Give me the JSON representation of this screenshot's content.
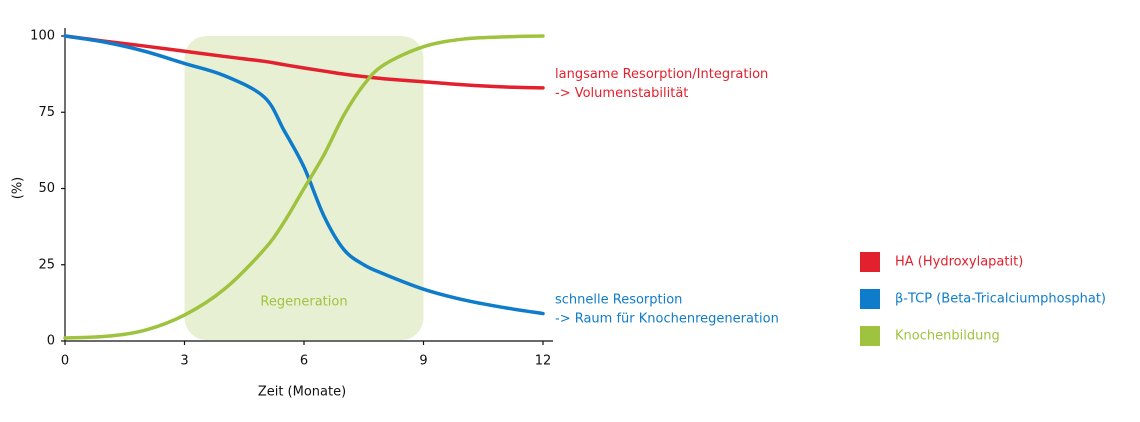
{
  "chart_data": {
    "type": "line",
    "x_label": "Zeit (Monate)",
    "y_label": "(%)",
    "x": [
      0,
      1,
      2,
      3,
      4,
      5,
      5.5,
      6,
      6.5,
      7,
      7.5,
      8,
      9,
      10,
      11,
      12
    ],
    "xlim": [
      0,
      12
    ],
    "xticks": [
      0,
      3,
      6,
      9,
      12
    ],
    "ylim": [
      0,
      100
    ],
    "yticks": [
      0,
      25,
      50,
      75,
      100
    ],
    "highlight": {
      "x": [
        3,
        9
      ],
      "label": "Regeneration",
      "color": "#e8f0d3"
    },
    "series": [
      {
        "name": "HA (Hydroxylapatit)",
        "color": "#e3202e",
        "values": [
          100,
          98.3,
          96.7,
          95,
          93.3,
          91.7,
          90.6,
          89.5,
          88.5,
          87.5,
          86.7,
          86,
          85,
          84,
          83.3,
          83
        ],
        "annotation": [
          "langsame Resorption/Integration",
          "-> Volumenstabilität"
        ]
      },
      {
        "name": "β-TCP (Beta-Tricalciumphosphat)",
        "color": "#0f7ccb",
        "values": [
          100,
          98,
          95,
          91,
          87,
          80,
          69,
          57,
          41,
          30,
          25,
          22,
          17,
          13.5,
          11,
          9
        ],
        "annotation": [
          "schnelle Resorption",
          "-> Raum für Knochenregeneration"
        ]
      },
      {
        "name": "Knochenbildung",
        "color": "#9fc33f",
        "values": [
          1,
          1.5,
          3.5,
          8.5,
          17,
          30,
          39,
          50,
          61,
          74,
          84,
          90.5,
          96.5,
          99,
          99.7,
          100
        ]
      }
    ]
  }
}
